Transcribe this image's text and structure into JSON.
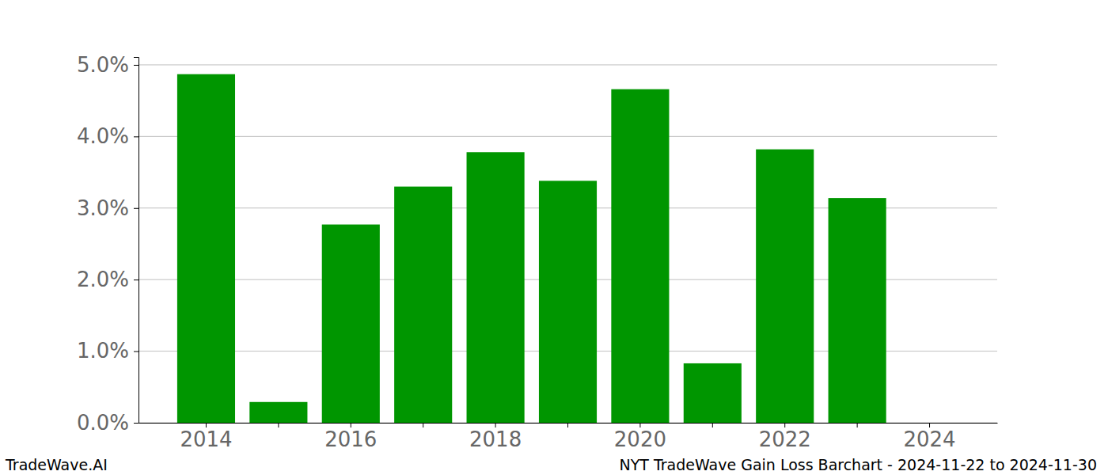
{
  "chart_data": {
    "type": "bar",
    "title": "NYT TradeWave Gain Loss Barchart - 2024-11-22 to 2024-11-30",
    "annotations": [
      "TradeWave.AI"
    ],
    "categories": [
      "2014",
      null,
      "2016",
      null,
      "2018",
      null,
      "2020",
      null,
      "2022",
      null,
      "2024"
    ],
    "values": [
      4.87,
      0.29,
      2.77,
      3.3,
      3.78,
      3.38,
      4.66,
      0.83,
      3.82,
      3.14,
      0
    ],
    "color": "#009600",
    "ylim": [
      0,
      5.11
    ],
    "yticks": [
      {
        "value": 0,
        "label": "0.0%"
      },
      {
        "value": 1,
        "label": "1.0%"
      },
      {
        "value": 2,
        "label": "2.0%"
      },
      {
        "value": 3,
        "label": "3.0%"
      },
      {
        "value": 4,
        "label": "4.0%"
      },
      {
        "value": 5,
        "label": "5.0%"
      }
    ],
    "grid": true
  }
}
